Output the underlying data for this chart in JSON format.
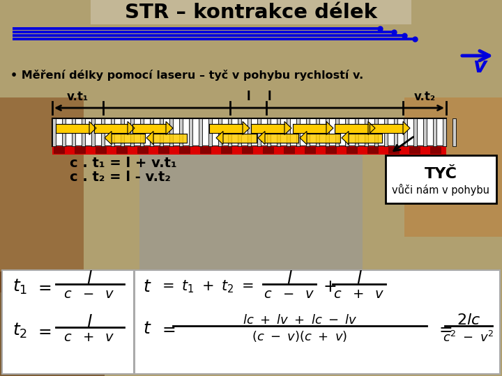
{
  "title": "STR – kontrakce délek",
  "subtitle": "• Měření délky pomocí laseru – tyč v pohybu rychlostí v.",
  "blue": "#0000dd",
  "yellow": "#ffcc00",
  "red": "#dd0000",
  "dark_red": "#880000",
  "white": "#ffffff",
  "black": "#000000",
  "gray_bg": "#b0a888",
  "eq1": "c . t₁ = l + v.t₁",
  "eq2": "c . t₂ = l - v.t₂",
  "box_title": "TYČ",
  "box_sub": "vůči nám v pohybu",
  "vt1": "v.t₁",
  "vt2": "v.t₂",
  "l_lbl": "l"
}
